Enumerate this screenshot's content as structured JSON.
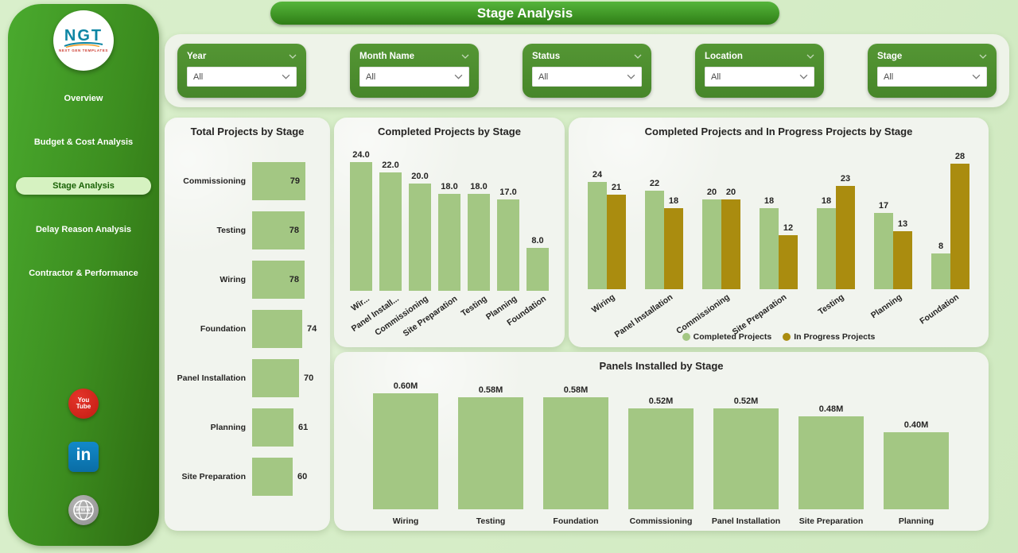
{
  "title": "Stage Analysis",
  "sidebar": {
    "logo": {
      "text": "NGT",
      "subtext": "NEXT GEN TEMPLATES"
    },
    "items": [
      {
        "label": "Overview",
        "active": false
      },
      {
        "label": "Budget & Cost Analysis",
        "active": false
      },
      {
        "label": "Stage Analysis",
        "active": true
      },
      {
        "label": "Delay Reason Analysis",
        "active": false
      },
      {
        "label": "Contractor & Performance",
        "active": false
      }
    ],
    "social": [
      {
        "icon": "youtube-icon",
        "label_top": "You",
        "label_bottom": "Tube"
      },
      {
        "icon": "linkedin-icon",
        "label": "in"
      },
      {
        "icon": "website-icon",
        "label": "www"
      }
    ]
  },
  "filters": [
    {
      "label": "Year",
      "value": "All"
    },
    {
      "label": "Month Name",
      "value": "All"
    },
    {
      "label": "Status",
      "value": "All"
    },
    {
      "label": "Location",
      "value": "All"
    },
    {
      "label": "Stage",
      "value": "All"
    }
  ],
  "colors": {
    "accent_green": "#4e8f2c",
    "bar_green": "#a3c783",
    "bar_olive": "#aa8c0f",
    "sidebar_dark": "#2d6a11",
    "sidebar_light": "#4aaa2e",
    "active_pill_bg": "#d6f2c1",
    "youtube_red": "#d7271d",
    "linkedin_blue": "#0b7bb5"
  },
  "chart_data": [
    {
      "id": "total-projects",
      "type": "bar",
      "orientation": "horizontal",
      "title": "Total Projects by Stage",
      "categories": [
        "Commissioning",
        "Testing",
        "Wiring",
        "Foundation",
        "Panel Installation",
        "Planning",
        "Site Preparation"
      ],
      "values": [
        79,
        78,
        78,
        74,
        70,
        61,
        60
      ],
      "color": "#a3c783",
      "xlim": [
        0,
        79
      ],
      "grid": false
    },
    {
      "id": "completed-projects",
      "type": "bar",
      "title": "Completed Projects by Stage",
      "categories": [
        "Wir...",
        "Panel Install...",
        "Commissioning",
        "Site Preparation",
        "Testing",
        "Planning",
        "Foundation"
      ],
      "values": [
        24,
        22,
        20,
        18,
        18,
        17,
        8
      ],
      "data_labels": [
        "24.0",
        "22.0",
        "20.0",
        "18.0",
        "18.0",
        "17.0",
        "8.0"
      ],
      "color": "#a3c783",
      "ylim": [
        0,
        24
      ],
      "grid": false
    },
    {
      "id": "completed-vs-inprogress",
      "type": "bar",
      "title": "Completed Projects and In Progress Projects by Stage",
      "categories": [
        "Wiring",
        "Panel Installation",
        "Commissioning",
        "Site Preparation",
        "Testing",
        "Planning",
        "Foundation"
      ],
      "series": [
        {
          "name": "Completed Projects",
          "color": "#a3c783",
          "values": [
            24,
            22,
            20,
            18,
            18,
            17,
            8
          ]
        },
        {
          "name": "In Progress Projects",
          "color": "#aa8c0f",
          "values": [
            21,
            18,
            20,
            12,
            23,
            13,
            28
          ]
        }
      ],
      "legend_position": "bottom",
      "ylim": [
        0,
        28
      ],
      "grid": false
    },
    {
      "id": "panels-installed",
      "type": "bar",
      "title": "Panels Installed by Stage",
      "categories": [
        "Wiring",
        "Testing",
        "Foundation",
        "Commissioning",
        "Panel Installation",
        "Site Preparation",
        "Planning"
      ],
      "values": [
        0.6,
        0.58,
        0.58,
        0.52,
        0.52,
        0.48,
        0.4
      ],
      "data_labels": [
        "0.60M",
        "0.58M",
        "0.58M",
        "0.52M",
        "0.52M",
        "0.48M",
        "0.40M"
      ],
      "color": "#a3c783",
      "ylim": [
        0,
        0.6
      ],
      "grid": false
    }
  ]
}
